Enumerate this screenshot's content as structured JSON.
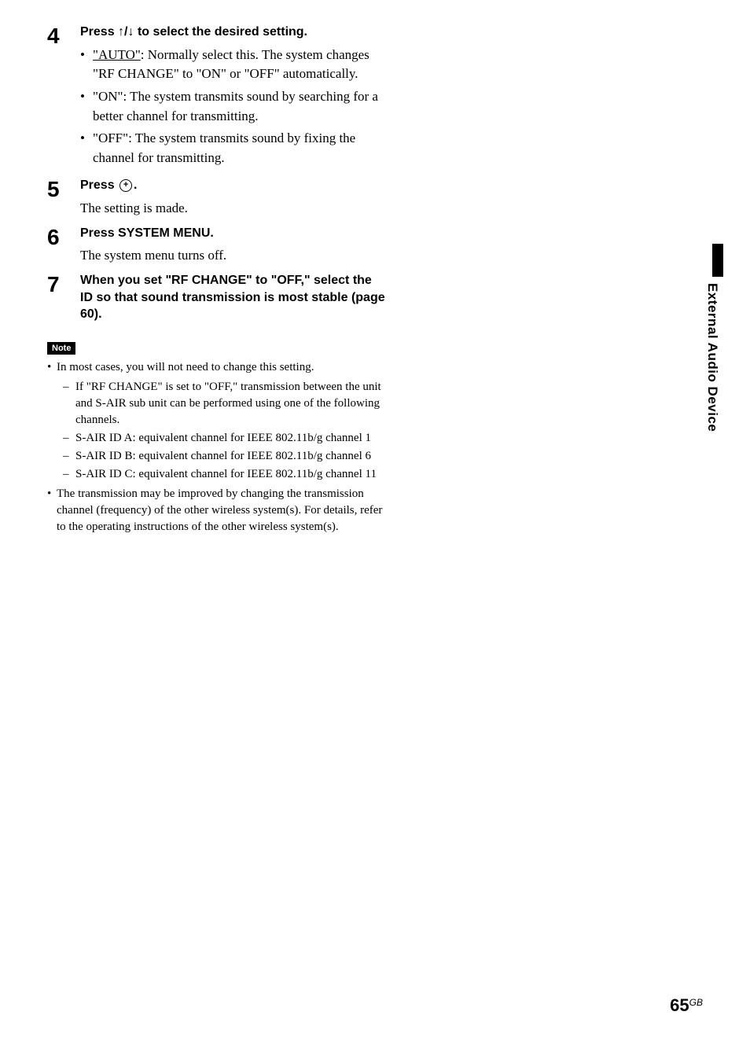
{
  "sideTab": {
    "label": "External Audio Device"
  },
  "steps": [
    {
      "num": "4",
      "title_prefix": "Press ",
      "title_arrows": "↑/↓",
      "title_suffix": " to select the desired setting.",
      "bullets": [
        {
          "label": "\"AUTO\"",
          "label_underlined": true,
          "text": ": Normally select this. The system changes \"RF CHANGE\" to \"ON\" or \"OFF\" automatically."
        },
        {
          "label": "\"ON\"",
          "label_underlined": false,
          "text": ": The system transmits sound by searching for a better channel for transmitting."
        },
        {
          "label": "\"OFF\"",
          "label_underlined": false,
          "text": ": The system transmits sound by fixing the channel for transmitting."
        }
      ]
    },
    {
      "num": "5",
      "title_prefix": "Press ",
      "title_has_icon": true,
      "title_suffix": ".",
      "body_text": "The setting is made."
    },
    {
      "num": "6",
      "title": "Press SYSTEM MENU.",
      "body_text": "The system menu turns off."
    },
    {
      "num": "7",
      "title": "When you set \"RF CHANGE\" to \"OFF,\" select the ID so that sound transmission is most stable (page 60)."
    }
  ],
  "noteLabel": "Note",
  "notes": [
    {
      "text": "In most cases, you will not need to change this setting.",
      "subs": [
        {
          "text": "If \"RF CHANGE\" is set to \"OFF,\" transmission between the unit and S-AIR sub unit can be performed using one of the following channels."
        },
        {
          "text": "S-AIR ID A: equivalent channel for IEEE 802.11b/g channel 1"
        },
        {
          "text": "S-AIR ID B: equivalent channel for IEEE 802.11b/g channel 6"
        },
        {
          "text": "S-AIR ID C: equivalent channel for IEEE 802.11b/g channel 11"
        }
      ]
    },
    {
      "text": "The transmission may be improved by changing the transmission channel (frequency) of the other wireless system(s). For details, refer to the operating instructions of the other wireless system(s)."
    }
  ],
  "footer": {
    "pageNum": "65",
    "suffix": "GB"
  }
}
